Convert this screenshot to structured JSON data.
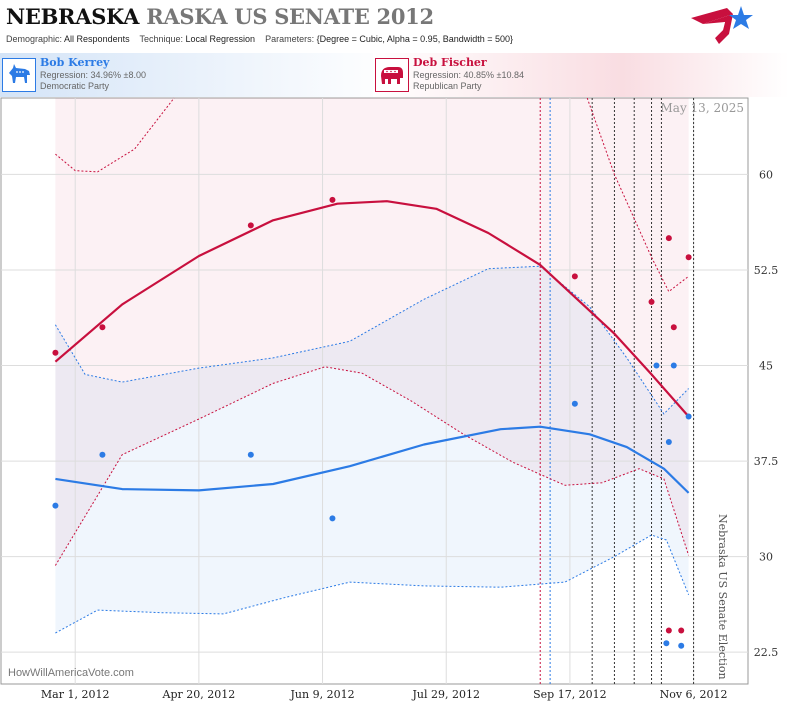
{
  "header": {
    "state_title": "NEBRASKA",
    "subtitle": "RASKA US SENATE 2012",
    "demographic_label": "Demographic:",
    "demographic_value": "All Respondents",
    "technique_label": "Technique:",
    "technique_value": "Local Regression",
    "parameters_label": "Parameters:",
    "parameters_value": "{Degree = Cubic, Alpha = 0.95, Bandwidth = 500}"
  },
  "candidates": {
    "dem": {
      "name": "Bob Kerrey",
      "regression": "Regression: 34.96% ±8.00",
      "party": "Democratic Party",
      "color": "#2c7be5",
      "icon": "donkey-icon"
    },
    "rep": {
      "name": "Deb Fischer",
      "regression": "Regression: 40.85% ±10.84",
      "party": "Republican Party",
      "color": "#c8103e",
      "icon": "elephant-icon"
    }
  },
  "credit": "HowWillAmericaVote.com",
  "logo_icon": "star-flag-logo-icon",
  "chart_data": {
    "type": "scatter",
    "date_label": "May 13, 2025",
    "election_label": "Nebraska US Senate Election",
    "x_range": [
      "2012-01-31",
      "2012-11-28"
    ],
    "ylim": [
      20,
      66
    ],
    "y_ticks": [
      22.5,
      30,
      37.5,
      45,
      52.5,
      60
    ],
    "x_ticks": [
      {
        "date": "2012-03-01",
        "label": "Mar 1, 2012"
      },
      {
        "date": "2012-04-20",
        "label": "Apr 20, 2012"
      },
      {
        "date": "2012-06-09",
        "label": "Jun 9, 2012"
      },
      {
        "date": "2012-07-29",
        "label": "Jul 29, 2012"
      },
      {
        "date": "2012-09-17",
        "label": "Sep 17, 2012"
      },
      {
        "date": "2012-11-06",
        "label": "Nov 6, 2012"
      }
    ],
    "event_lines": [
      {
        "date": "2012-09-05",
        "color": "#c8103e"
      },
      {
        "date": "2012-09-09",
        "color": "#2c7be5"
      },
      {
        "date": "2012-09-26",
        "color": "#333333"
      },
      {
        "date": "2012-10-05",
        "color": "#333333"
      },
      {
        "date": "2012-10-13",
        "color": "#333333"
      },
      {
        "date": "2012-10-20",
        "color": "#333333"
      },
      {
        "date": "2012-10-24",
        "color": "#333333"
      },
      {
        "date": "2012-11-06",
        "color": "#333333"
      }
    ],
    "series": [
      {
        "name": "Deb Fischer",
        "color": "#c8103e",
        "points": [
          [
            "2012-02-22",
            46
          ],
          [
            "2012-03-12",
            48
          ],
          [
            "2012-05-11",
            56
          ],
          [
            "2012-06-13",
            58
          ],
          [
            "2012-09-19",
            52
          ],
          [
            "2012-10-20",
            50
          ],
          [
            "2012-10-27",
            55
          ],
          [
            "2012-10-29",
            48
          ],
          [
            "2012-11-04",
            53.5
          ],
          [
            "2012-10-27",
            24.2
          ],
          [
            "2012-11-01",
            24.2
          ]
        ],
        "fit": [
          [
            "2012-02-22",
            45.3
          ],
          [
            "2012-03-20",
            49.8
          ],
          [
            "2012-04-20",
            53.6
          ],
          [
            "2012-05-20",
            56.4
          ],
          [
            "2012-06-15",
            57.7
          ],
          [
            "2012-07-05",
            57.9
          ],
          [
            "2012-07-25",
            57.3
          ],
          [
            "2012-08-15",
            55.4
          ],
          [
            "2012-09-05",
            52.9
          ],
          [
            "2012-09-20",
            50.2
          ],
          [
            "2012-10-05",
            47.5
          ],
          [
            "2012-10-20",
            44.3
          ],
          [
            "2012-11-04",
            41.0
          ]
        ],
        "upper": [
          [
            "2012-02-22",
            61.6
          ],
          [
            "2012-03-01",
            60.3
          ],
          [
            "2012-03-10",
            60.2
          ],
          [
            "2012-03-25",
            62
          ],
          [
            "2012-04-10",
            66
          ]
        ],
        "upper_right": [
          [
            "2012-09-24",
            66
          ],
          [
            "2012-10-05",
            60
          ],
          [
            "2012-10-20",
            53.5
          ],
          [
            "2012-10-27",
            50.8
          ],
          [
            "2012-11-04",
            52
          ]
        ],
        "lower": [
          [
            "2012-02-22",
            29.3
          ],
          [
            "2012-03-20",
            38
          ],
          [
            "2012-04-20",
            40.8
          ],
          [
            "2012-05-20",
            43.6
          ],
          [
            "2012-06-10",
            44.9
          ],
          [
            "2012-06-25",
            44.4
          ],
          [
            "2012-07-15",
            42.2
          ],
          [
            "2012-08-05",
            39.6
          ],
          [
            "2012-08-25",
            37.4
          ],
          [
            "2012-09-15",
            35.6
          ],
          [
            "2012-09-30",
            35.8
          ],
          [
            "2012-10-15",
            36.9
          ],
          [
            "2012-10-25",
            36.1
          ],
          [
            "2012-11-04",
            30.1
          ]
        ]
      },
      {
        "name": "Bob Kerrey",
        "color": "#2c7be5",
        "points": [
          [
            "2012-02-22",
            34
          ],
          [
            "2012-03-12",
            38
          ],
          [
            "2012-05-11",
            38
          ],
          [
            "2012-06-13",
            33
          ],
          [
            "2012-09-19",
            42
          ],
          [
            "2012-10-22",
            45
          ],
          [
            "2012-10-27",
            39
          ],
          [
            "2012-10-29",
            45
          ],
          [
            "2012-11-04",
            41
          ],
          [
            "2012-10-26",
            23.2
          ],
          [
            "2012-11-01",
            23.0
          ]
        ],
        "fit": [
          [
            "2012-02-22",
            36.1
          ],
          [
            "2012-03-20",
            35.3
          ],
          [
            "2012-04-20",
            35.2
          ],
          [
            "2012-05-20",
            35.7
          ],
          [
            "2012-06-20",
            37.1
          ],
          [
            "2012-07-20",
            38.8
          ],
          [
            "2012-08-20",
            40.0
          ],
          [
            "2012-09-05",
            40.2
          ],
          [
            "2012-09-25",
            39.6
          ],
          [
            "2012-10-10",
            38.6
          ],
          [
            "2012-10-25",
            36.9
          ],
          [
            "2012-11-04",
            35.0
          ]
        ],
        "upper": [
          [
            "2012-02-22",
            48.2
          ],
          [
            "2012-03-05",
            44.3
          ],
          [
            "2012-03-20",
            43.7
          ],
          [
            "2012-04-20",
            44.8
          ],
          [
            "2012-05-20",
            45.6
          ],
          [
            "2012-06-20",
            46.9
          ],
          [
            "2012-07-20",
            50.2
          ],
          [
            "2012-08-15",
            52.6
          ],
          [
            "2012-09-05",
            52.8
          ],
          [
            "2012-09-25",
            49.6
          ],
          [
            "2012-10-10",
            45.6
          ],
          [
            "2012-10-25",
            41.2
          ],
          [
            "2012-11-04",
            43.2
          ]
        ],
        "lower": [
          [
            "2012-02-22",
            24
          ],
          [
            "2012-03-10",
            25.8
          ],
          [
            "2012-04-05",
            25.6
          ],
          [
            "2012-04-30",
            25.5
          ],
          [
            "2012-05-25",
            26.8
          ],
          [
            "2012-06-20",
            28.0
          ],
          [
            "2012-07-20",
            27.7
          ],
          [
            "2012-08-20",
            27.6
          ],
          [
            "2012-09-15",
            28.0
          ],
          [
            "2012-10-05",
            30.0
          ],
          [
            "2012-10-20",
            31.7
          ],
          [
            "2012-10-26",
            31.3
          ],
          [
            "2012-11-04",
            27.0
          ]
        ]
      }
    ]
  }
}
